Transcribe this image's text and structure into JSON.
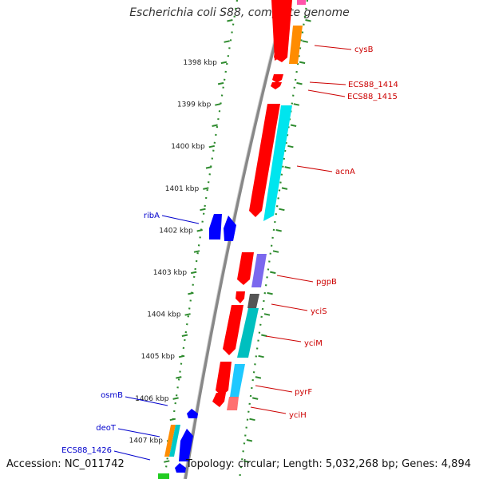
{
  "title": "Escherichia coli S88, complete genome",
  "accession": "Accession: NC_011742",
  "summary": "Topology: circular; Length: 5,032,268 bp; Genes: 4,894",
  "colors": {
    "backbone": "#888888",
    "ruler": "#2e8b2e",
    "forward_label": "#0000cc",
    "reverse_label": "#cc0000"
  },
  "scale_labels": [
    "1398 kbp",
    "1399 kbp",
    "1400 kbp",
    "1401 kbp",
    "1402 kbp",
    "1403 kbp",
    "1404 kbp",
    "1405 kbp",
    "1406 kbp",
    "1407 kbp"
  ],
  "genes": [
    {
      "name": "cysB",
      "strand": "reverse",
      "color": "#ff0000"
    },
    {
      "name": "ECS88_1414",
      "strand": "reverse",
      "color": "#ff0000"
    },
    {
      "name": "ECS88_1415",
      "strand": "reverse",
      "color": "#ff0000"
    },
    {
      "name": "acnA",
      "strand": "reverse",
      "color": "#ff0000"
    },
    {
      "name": "ribA",
      "strand": "forward",
      "color": "#0000ff"
    },
    {
      "name": "pgpB",
      "strand": "reverse",
      "color": "#ff0000"
    },
    {
      "name": "yciS",
      "strand": "reverse",
      "color": "#ff0000"
    },
    {
      "name": "yciM",
      "strand": "reverse",
      "color": "#ff0000"
    },
    {
      "name": "pyrF",
      "strand": "reverse",
      "color": "#ff0000"
    },
    {
      "name": "yciH",
      "strand": "reverse",
      "color": "#ff0000"
    },
    {
      "name": "osmB",
      "strand": "forward",
      "color": "#0000ff"
    },
    {
      "name": "deoT",
      "strand": "forward",
      "color": "#0000ff"
    },
    {
      "name": "ECS88_1426",
      "strand": "forward",
      "color": "#0000ff"
    }
  ]
}
